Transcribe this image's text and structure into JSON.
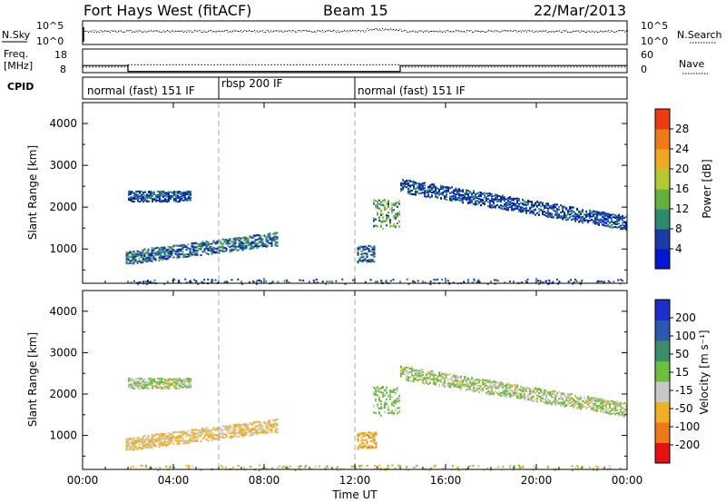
{
  "header": {
    "title": "Fort Hays West (fitACF)",
    "beam": "Beam 15",
    "date": "22/Mar/2013"
  },
  "noise_panel": {
    "left_label": "N.Sky",
    "right_label": "N.Search",
    "left_ticks": [
      "10^5",
      "10^0"
    ],
    "right_ticks": [
      "10^5",
      "10^0"
    ]
  },
  "freq_panel": {
    "left_label_1": "Freq.",
    "left_label_2": "[MHz]",
    "right_label": "Nave",
    "left_ticks": [
      "18",
      "8"
    ],
    "right_ticks": [
      "60",
      "0"
    ]
  },
  "cpid_panel": {
    "label": "CPID",
    "modes": [
      "normal (fast) 151 IF",
      "rbsp 200 IF",
      "normal (fast) 151 IF"
    ]
  },
  "x_axis": {
    "label": "Time UT",
    "ticks": [
      "00:00",
      "04:00",
      "08:00",
      "12:00",
      "16:00",
      "20:00",
      "00:00"
    ]
  },
  "power_panel": {
    "ylabel": "Slant Range [km]",
    "yticks": [
      "4000",
      "3000",
      "2000",
      "1000"
    ],
    "colorbar_label": "Power [dB]",
    "colorbar_ticks": [
      "28",
      "24",
      "20",
      "16",
      "12",
      "8",
      "4"
    ],
    "colors": [
      "#0018d0",
      "#1a3ca8",
      "#2a8c6a",
      "#63b040",
      "#b8c830",
      "#f0a820",
      "#f07a18",
      "#f03a10",
      "#e00000"
    ]
  },
  "velocity_panel": {
    "ylabel": "Slant Range [km]",
    "yticks": [
      "4000",
      "3000",
      "2000",
      "1000"
    ],
    "colorbar_label": "Velocity [m s⁻¹]",
    "colorbar_ticks": [
      "200",
      "100",
      "50",
      "15",
      "-15",
      "-50",
      "-100",
      "-200"
    ],
    "colors": [
      "#1c2ed0",
      "#2a5ab0",
      "#3a8f68",
      "#6cc040",
      "#c8c8c8",
      "#f0b020",
      "#f07818",
      "#e81010"
    ]
  },
  "chart_data": {
    "type": "heatmap",
    "title": "Fort Hays West (fitACF)",
    "xlabel": "Time UT",
    "ylabel": "Slant Range [km]",
    "xlim": [
      0,
      24
    ],
    "ylim": [
      180,
      4500
    ],
    "ctime_switches": [
      6,
      12
    ],
    "power_regions": [
      {
        "t": [
          2.0,
          4.8
        ],
        "r": [
          2150,
          2400
        ],
        "power": 8
      },
      {
        "t": [
          1.9,
          8.6
        ],
        "r": [
          650,
          1350
        ],
        "power": 10
      },
      {
        "t": [
          12.1,
          12.9
        ],
        "r": [
          700,
          1100
        ],
        "power": 8
      },
      {
        "t": [
          12.8,
          14.0
        ],
        "r": [
          1500,
          2200
        ],
        "power": 14
      },
      {
        "t": [
          14.0,
          24.0
        ],
        "r": [
          1500,
          2700
        ],
        "power": 8
      }
    ],
    "velocity_regions": [
      {
        "t": [
          2.0,
          4.8
        ],
        "r": [
          2150,
          2400
        ],
        "velocity": 0
      },
      {
        "t": [
          1.9,
          8.6
        ],
        "r": [
          650,
          1350
        ],
        "velocity": -20
      },
      {
        "t": [
          12.1,
          13.0
        ],
        "r": [
          700,
          1100
        ],
        "velocity": -40
      },
      {
        "t": [
          12.8,
          14.0
        ],
        "r": [
          1500,
          2200
        ],
        "velocity": 10
      },
      {
        "t": [
          14.0,
          24.0
        ],
        "r": [
          1500,
          2700
        ],
        "velocity": 0
      }
    ]
  }
}
